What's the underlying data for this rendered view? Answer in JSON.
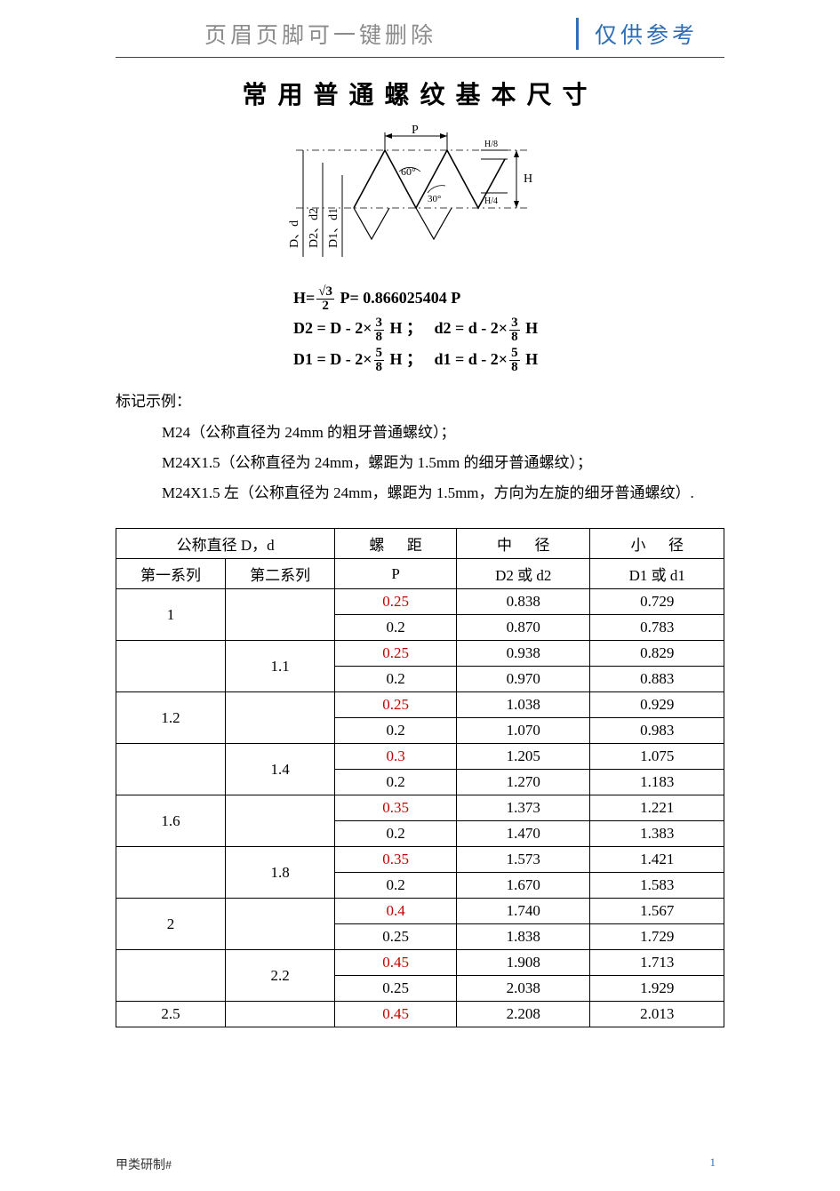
{
  "header": {
    "left": "页眉页脚可一键删除",
    "right": "仅供参考"
  },
  "title": "常用普通螺纹基本尺寸",
  "diagram": {
    "label_P": "P",
    "label_H": "H",
    "label_H8": "H/8",
    "label_H4": "H/4",
    "angle_60": "60°",
    "angle_30": "30°",
    "axis_D": "D、d",
    "axis_D2": "D2、d2",
    "axis_D1": "D1、d1"
  },
  "formulas": {
    "f1_lead": "H=",
    "f1_num": "√3",
    "f1_den": "2",
    "f1_mid": " P= 0.866025404 P",
    "f2a_lead": "D2 = D - 2×",
    "f2_num": "3",
    "f2_den": "8",
    "f2a_tail": " H ；",
    "f2b_lead": "d2 = d - 2×",
    "f2b_tail": " H",
    "f3a_lead": "D1 = D - 2×",
    "f3_num": "5",
    "f3_den": "8",
    "f3a_tail": " H ；",
    "f3b_lead": "d1 = d - 2×",
    "f3b_tail": " H"
  },
  "examples_label": "标记示例：",
  "examples": [
    "M24（公称直径为 24mm 的粗牙普通螺纹）；",
    "M24X1.5（公称直径为 24mm，螺距为 1.5mm 的细牙普通螺纹）；",
    "M24X1.5 左（公称直径为 24mm，螺距为 1.5mm，方向为左旋的细牙普通螺纹）."
  ],
  "table": {
    "head": {
      "nominal": "公称直径 D，d",
      "series1": "第一系列",
      "series2": "第二系列",
      "pitch_h": "螺",
      "pitch_h2": "距",
      "mid_h": "中",
      "mid_h2": "径",
      "minor_h": "小",
      "minor_h2": "径",
      "P": "P",
      "D2": "D2 或 d2",
      "D1": "D1 或 d1"
    },
    "groups": [
      {
        "s1": "1",
        "s2": "",
        "rows": [
          {
            "P": "0.25",
            "red": true,
            "D2": "0.838",
            "D1": "0.729"
          },
          {
            "P": "0.2",
            "red": false,
            "D2": "0.870",
            "D1": "0.783"
          }
        ]
      },
      {
        "s1": "",
        "s2": "1.1",
        "rows": [
          {
            "P": "0.25",
            "red": true,
            "D2": "0.938",
            "D1": "0.829"
          },
          {
            "P": "0.2",
            "red": false,
            "D2": "0.970",
            "D1": "0.883"
          }
        ]
      },
      {
        "s1": "1.2",
        "s2": "",
        "rows": [
          {
            "P": "0.25",
            "red": true,
            "D2": "1.038",
            "D1": "0.929"
          },
          {
            "P": "0.2",
            "red": false,
            "D2": "1.070",
            "D1": "0.983"
          }
        ]
      },
      {
        "s1": "",
        "s2": "1.4",
        "rows": [
          {
            "P": "0.3",
            "red": true,
            "D2": "1.205",
            "D1": "1.075"
          },
          {
            "P": "0.2",
            "red": false,
            "D2": "1.270",
            "D1": "1.183"
          }
        ]
      },
      {
        "s1": "1.6",
        "s2": "",
        "rows": [
          {
            "P": "0.35",
            "red": true,
            "D2": "1.373",
            "D1": "1.221"
          },
          {
            "P": "0.2",
            "red": false,
            "D2": "1.470",
            "D1": "1.383"
          }
        ]
      },
      {
        "s1": "",
        "s2": "1.8",
        "rows": [
          {
            "P": "0.35",
            "red": true,
            "D2": "1.573",
            "D1": "1.421"
          },
          {
            "P": "0.2",
            "red": false,
            "D2": "1.670",
            "D1": "1.583"
          }
        ]
      },
      {
        "s1": "2",
        "s2": "",
        "rows": [
          {
            "P": "0.4",
            "red": true,
            "D2": "1.740",
            "D1": "1.567"
          },
          {
            "P": "0.25",
            "red": false,
            "D2": "1.838",
            "D1": "1.729"
          }
        ]
      },
      {
        "s1": "",
        "s2": "2.2",
        "rows": [
          {
            "P": "0.45",
            "red": true,
            "D2": "1.908",
            "D1": "1.713"
          },
          {
            "P": "0.25",
            "red": false,
            "D2": "2.038",
            "D1": "1.929"
          }
        ]
      },
      {
        "s1": "2.5",
        "s2": "",
        "rows": [
          {
            "P": "0.45",
            "red": true,
            "D2": "2.208",
            "D1": "2.013"
          }
        ]
      }
    ],
    "col_widths": [
      "18%",
      "18%",
      "20%",
      "22%",
      "22%"
    ]
  },
  "footer": "甲类研制#",
  "page_number": "1"
}
